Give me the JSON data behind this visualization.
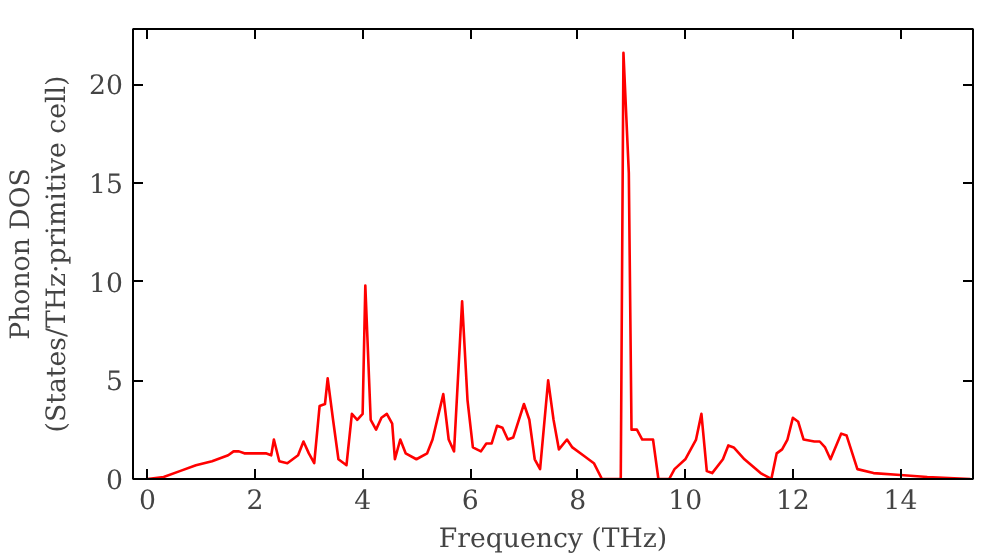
{
  "chart_data": {
    "type": "line",
    "xlabel": "Frequency (THz)",
    "ylabel": "Phonon DOS\n(States/THz·primitive cell)",
    "xlim": [
      -0.27,
      15.35
    ],
    "ylim": [
      0,
      22.8
    ],
    "xticks": [
      0,
      2,
      4,
      6,
      8,
      10,
      12,
      14
    ],
    "yticks": [
      0,
      5,
      10,
      15,
      20
    ],
    "grid": false,
    "marker": "none",
    "line_style": "solid",
    "x": [
      0,
      0.3,
      0.6,
      0.9,
      1.2,
      1.5,
      1.6,
      1.7,
      1.8,
      2.2,
      2.3,
      2.35,
      2.45,
      2.6,
      2.8,
      2.9,
      3.0,
      3.1,
      3.2,
      3.3,
      3.35,
      3.45,
      3.55,
      3.7,
      3.8,
      3.9,
      4.0,
      4.05,
      4.15,
      4.25,
      4.35,
      4.45,
      4.55,
      4.6,
      4.7,
      4.8,
      5.0,
      5.2,
      5.3,
      5.5,
      5.6,
      5.7,
      5.85,
      5.95,
      6.05,
      6.2,
      6.3,
      6.4,
      6.5,
      6.6,
      6.7,
      6.8,
      7.0,
      7.1,
      7.2,
      7.3,
      7.45,
      7.55,
      7.65,
      7.8,
      7.9,
      8.1,
      8.3,
      8.45,
      8.8,
      8.85,
      8.95,
      9.0,
      9.1,
      9.2,
      9.4,
      9.5,
      9.7,
      9.8,
      10.0,
      10.2,
      10.3,
      10.4,
      10.5,
      10.7,
      10.8,
      10.9,
      11.1,
      11.4,
      11.6,
      11.7,
      11.8,
      11.9,
      12.0,
      12.1,
      12.2,
      12.4,
      12.5,
      12.6,
      12.7,
      12.9,
      13.0,
      13.2,
      13.5,
      14.0,
      14.5,
      15.3
    ],
    "series": [
      {
        "color": "#ff0000",
        "values": [
          0,
          0.1,
          0.4,
          0.7,
          0.9,
          1.2,
          1.4,
          1.4,
          1.3,
          1.3,
          1.2,
          2.0,
          0.9,
          0.8,
          1.2,
          1.9,
          1.3,
          0.8,
          3.7,
          3.8,
          5.1,
          3.0,
          1.0,
          0.7,
          3.3,
          3.0,
          3.3,
          9.8,
          3.0,
          2.5,
          3.1,
          3.3,
          2.8,
          1.0,
          2.0,
          1.3,
          1.0,
          1.3,
          2.0,
          4.3,
          2.0,
          1.4,
          9.0,
          4.0,
          1.6,
          1.4,
          1.8,
          1.8,
          2.7,
          2.6,
          2.0,
          2.1,
          3.8,
          3.0,
          1.0,
          0.5,
          5.0,
          3.0,
          1.5,
          2.0,
          1.6,
          1.2,
          0.8,
          0,
          0,
          21.6,
          15.5,
          2.5,
          2.5,
          2.0,
          2.0,
          0,
          0,
          0.5,
          1.0,
          2.0,
          3.3,
          0.4,
          0.3,
          1.0,
          1.7,
          1.6,
          1.0,
          0.3,
          0.0,
          1.3,
          1.5,
          2.0,
          3.1,
          2.9,
          2.0,
          1.9,
          1.9,
          1.6,
          1.0,
          2.3,
          2.2,
          0.5,
          0.3,
          0.2,
          0.1,
          0.0
        ]
      }
    ]
  }
}
